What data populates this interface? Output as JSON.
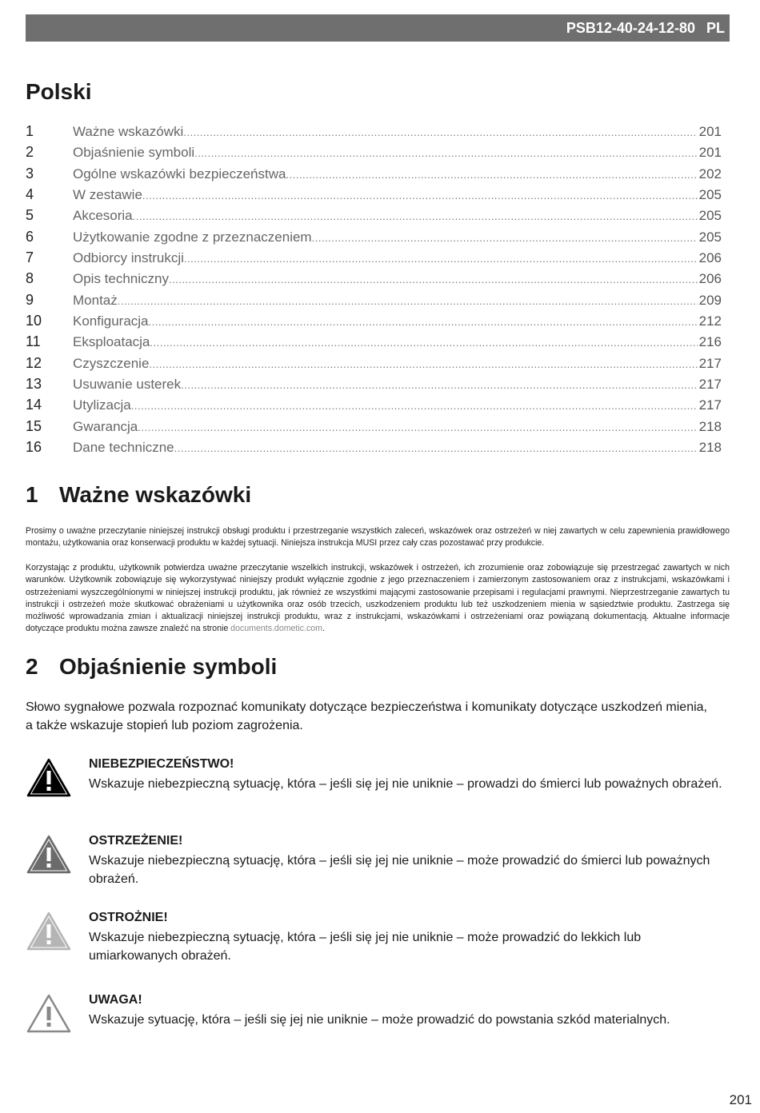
{
  "header": {
    "model": "PSB12-40-24-12-80",
    "lang": "PL"
  },
  "title": "Polski",
  "toc": [
    {
      "num": "1",
      "title": "Ważne wskazówki",
      "page": "201"
    },
    {
      "num": "2",
      "title": "Objaśnienie symboli",
      "page": "201"
    },
    {
      "num": "3",
      "title": "Ogólne wskazówki bezpieczeństwa",
      "page": "202"
    },
    {
      "num": "4",
      "title": "W zestawie",
      "page": "205"
    },
    {
      "num": "5",
      "title": "Akcesoria",
      "page": "205"
    },
    {
      "num": "6",
      "title": "Użytkowanie zgodne z przeznaczeniem",
      "page": "205"
    },
    {
      "num": "7",
      "title": "Odbiorcy instrukcji",
      "page": "206"
    },
    {
      "num": "8",
      "title": "Opis techniczny",
      "page": "206"
    },
    {
      "num": "9",
      "title": "Montaż",
      "page": "209"
    },
    {
      "num": "10",
      "title": "Konfiguracja",
      "page": "212"
    },
    {
      "num": "11",
      "title": "Eksploatacja",
      "page": "216"
    },
    {
      "num": "12",
      "title": "Czyszczenie",
      "page": "217"
    },
    {
      "num": "13",
      "title": "Usuwanie usterek",
      "page": "217"
    },
    {
      "num": "14",
      "title": "Utylizacja",
      "page": "217"
    },
    {
      "num": "15",
      "title": "Gwarancja",
      "page": "218"
    },
    {
      "num": "16",
      "title": "Dane techniczne",
      "page": "218"
    }
  ],
  "section1": {
    "num": "1",
    "title": "Ważne wskazówki",
    "p1": "Prosimy o uważne przeczytanie niniejszej instrukcji obsługi produktu i przestrzeganie wszystkich zaleceń, wskazówek oraz ostrzeżeń w niej zawartych w celu zapewnienia prawidłowego montażu, użytkowania oraz konserwacji produktu w każdej sytuacji. Niniejsza instrukcja MUSI przez cały czas pozostawać przy produkcie.",
    "p2": "Korzystając z produktu, użytkownik potwierdza uważne przeczytanie wszelkich instrukcji, wskazówek i ostrzeżeń, ich zrozumienie oraz zobowiązuje się przestrzegać zawartych w nich warunków. Użytkownik zobowiązuje się wykorzystywać niniejszy produkt wyłącznie zgodnie z jego przeznaczeniem i zamierzonym zastosowaniem oraz z instrukcjami, wskazówkami i ostrzeżeniami wyszczególnionymi w niniejszej instrukcji produktu, jak również ze wszystkimi mającymi zastosowanie przepisami i regulacjami prawnymi. Nieprzestrzeganie zawartych tu instrukcji i ostrzeżeń może skutkować obrażeniami u użytkownika oraz osób trzecich, uszkodzeniem produktu lub też uszkodzeniem mienia w sąsiedztwie produktu. Zastrzega się możliwość wprowadzania zmian i aktualizacji niniejszej instrukcji produktu, wraz z instrukcjami, wskazówkami i ostrzeżeniami oraz powiązaną dokumentacją. Aktualne informacje dotyczące produktu można zawsze znaleźć na stronie",
    "link": "documents.dometic.com",
    "p2_end": "."
  },
  "section2": {
    "num": "2",
    "title": "Objaśnienie symboli",
    "intro": "Słowo sygnałowe pozwala rozpoznać komunikaty dotyczące bezpieczeństwa i komunikaty dotyczące uszkodzeń mienia, a także wskazuje stopień lub poziom zagrożenia.",
    "warnings": [
      {
        "icon": "warning-triangle-black-icon",
        "color": "#000000",
        "title": "NIEBEZPIECZEŃSTWO!",
        "text": "Wskazuje niebezpieczną sytuację, która – jeśli się jej nie uniknie – prowadzi do śmierci lub poważnych obrażeń."
      },
      {
        "icon": "warning-triangle-darkgray-icon",
        "color": "#6b6b6b",
        "title": "OSTRZEŻENIE!",
        "text": "Wskazuje niebezpieczną sytuację, która – jeśli się jej nie uniknie – może prowadzić do śmierci lub poważnych obrażeń."
      },
      {
        "icon": "warning-triangle-lightgray-icon",
        "color": "#b5b5b5",
        "title": "OSTROŻNIE!",
        "text": "Wskazuje niebezpieczną sytuację, która – jeśli się jej nie uniknie – może prowadzić do lekkich lub umiarkowanych obrażeń."
      },
      {
        "icon": "warning-triangle-outline-icon",
        "color": "#ffffff",
        "title": "UWAGA!",
        "text": "Wskazuje sytuację, która – jeśli się jej nie uniknie – może prowadzić do powstania szkód materialnych."
      }
    ]
  },
  "page_number": "201"
}
